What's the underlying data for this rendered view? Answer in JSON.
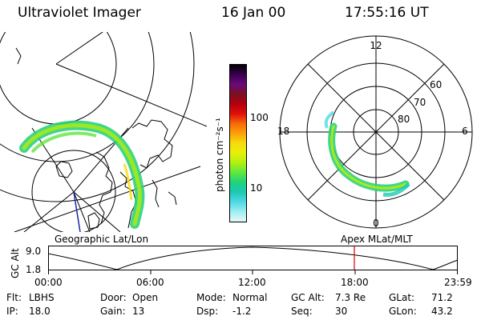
{
  "header": {
    "title": "Ultraviolet Imager",
    "date": "16 Jan 00",
    "time": "17:55:16 UT"
  },
  "colorbar": {
    "unit_label": "photon cm⁻²s⁻¹",
    "ticks": [
      "100",
      "10"
    ],
    "colors": [
      "#000000",
      "#3a0050",
      "#6a0a7a",
      "#7a1020",
      "#b40010",
      "#e0100a",
      "#f56a08",
      "#fca00a",
      "#f5dc0a",
      "#e8f00a",
      "#b0f010",
      "#60e640",
      "#20d27a",
      "#1ec8b4",
      "#50d8e6",
      "#a0eef0",
      "#e6f8f8"
    ]
  },
  "left_panel": {
    "caption": "Geographic Lat/Lon"
  },
  "right_panel": {
    "caption": "Apex MLat/MLT",
    "mlt_labels": {
      "top": "12",
      "left": "18",
      "right": "6",
      "bottom": "0"
    },
    "lat_labels": [
      "60",
      "70",
      "80"
    ]
  },
  "altitude_plot": {
    "ylabel": "GC Alt",
    "ymax_label": "9.0",
    "ymin_label": "1.8",
    "x_ticks": [
      "00:00",
      "06:00",
      "12:00",
      "18:00",
      "23:59"
    ],
    "current_time_marker": "17:55:16",
    "marker_color": "#e00000"
  },
  "footer": {
    "row1": [
      {
        "label": "Flt:",
        "value": "LBHS"
      },
      {
        "label": "Door:",
        "value": "Open"
      },
      {
        "label": "Mode:",
        "value": "Normal"
      },
      {
        "label": "GC Alt:",
        "value": "7.3 Re"
      },
      {
        "label": "GLat:",
        "value": "71.2"
      }
    ],
    "row2": [
      {
        "label": "IP:",
        "value": "18.0"
      },
      {
        "label": "Gain:",
        "value": "13"
      },
      {
        "label": "Dsp:",
        "value": "-1.2"
      },
      {
        "label": "Seq:",
        "value": "30"
      },
      {
        "label": "GLon:",
        "value": "43.2"
      }
    ]
  }
}
